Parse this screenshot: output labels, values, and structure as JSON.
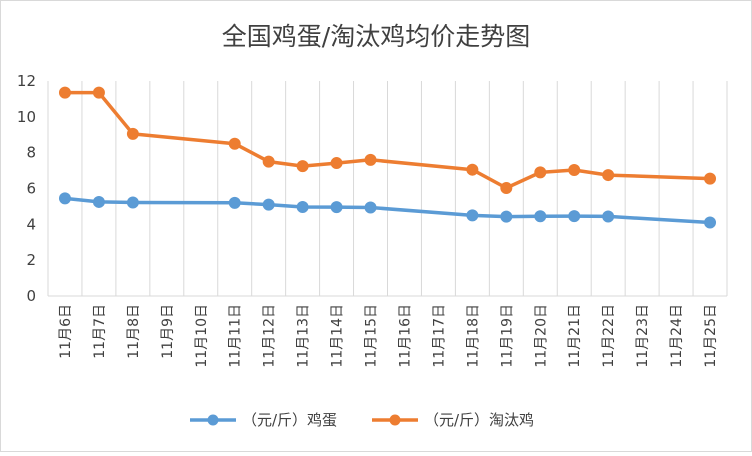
{
  "chart_data": {
    "type": "line",
    "title": "全国鸡蛋/淘汰鸡均价走势图",
    "xlabel": "",
    "ylabel": "",
    "ylim": [
      0,
      12
    ],
    "yticks": [
      0,
      2,
      4,
      6,
      8,
      10,
      12
    ],
    "grid": "vertical",
    "legend_position": "bottom",
    "categories": [
      "11月6日",
      "11月7日",
      "11月8日",
      "11月9日",
      "11月10日",
      "11月11日",
      "11月12日",
      "11月13日",
      "11月14日",
      "11月15日",
      "11月16日",
      "11月17日",
      "11月18日",
      "11月19日",
      "11月20日",
      "11月21日",
      "11月22日",
      "11月23日",
      "11月24日",
      "11月25日"
    ],
    "series": [
      {
        "name": "（元/斤）鸡蛋",
        "color": "#5B9BD5",
        "values": [
          5.45,
          5.25,
          5.22,
          null,
          null,
          5.2,
          5.1,
          4.97,
          4.96,
          4.94,
          null,
          null,
          4.5,
          4.43,
          4.45,
          4.46,
          4.44,
          null,
          null,
          4.1
        ]
      },
      {
        "name": "（元/斤）淘汰鸡",
        "color": "#ED7D31",
        "values": [
          11.35,
          11.35,
          9.05,
          null,
          null,
          8.5,
          7.5,
          7.25,
          7.42,
          7.6,
          null,
          null,
          7.05,
          6.03,
          6.9,
          7.03,
          6.75,
          null,
          null,
          6.55
        ]
      }
    ]
  }
}
